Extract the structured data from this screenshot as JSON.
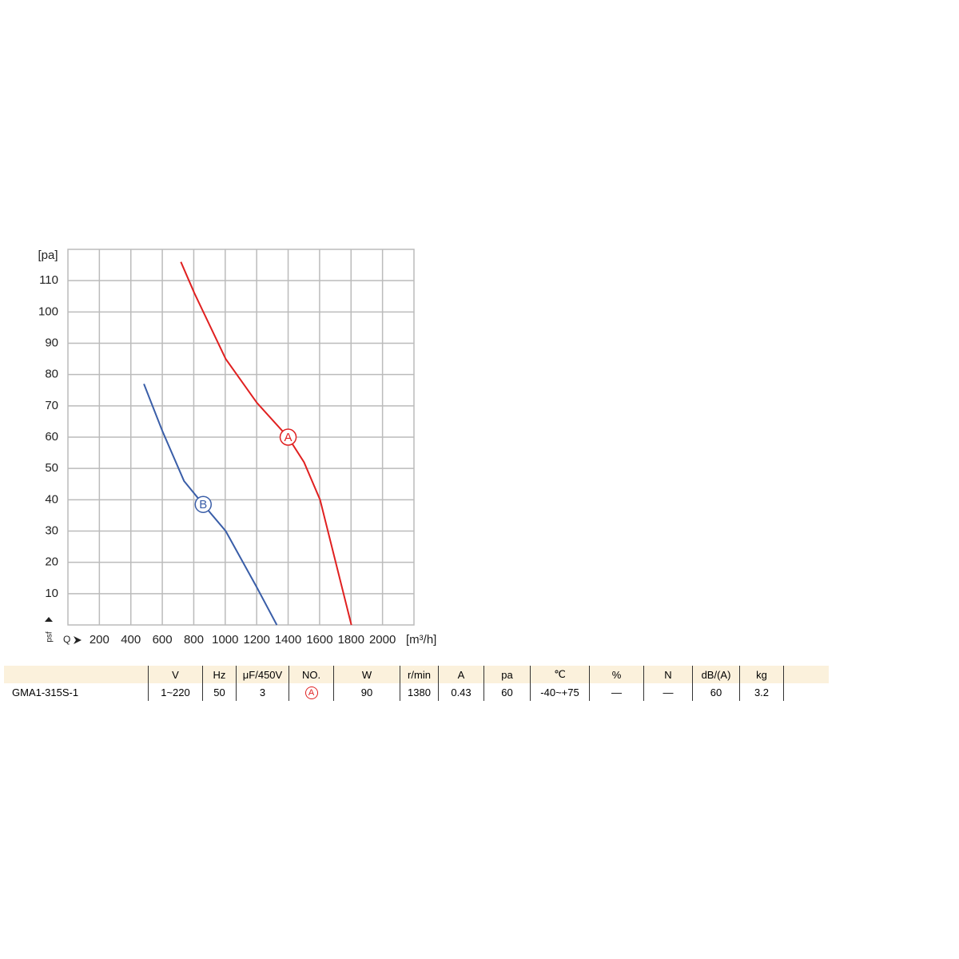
{
  "chart_data": {
    "type": "line",
    "y_label": "[pa]",
    "y_axis_symbol": "psf",
    "x_axis_symbol": "Q",
    "x_label": "[m³/h]",
    "xlim": [
      0,
      2200
    ],
    "xticks": [
      200,
      400,
      600,
      800,
      1000,
      1200,
      1400,
      1600,
      1800,
      2000
    ],
    "ylim": [
      0,
      120
    ],
    "yticks": [
      10,
      20,
      30,
      40,
      50,
      60,
      70,
      80,
      90,
      100,
      110
    ],
    "grid": true,
    "series": [
      {
        "name": "A",
        "color": "#e02020",
        "x": [
          718,
          804,
          1003,
          1201,
          1399,
          1501,
          1603,
          1802
        ],
        "values": [
          116,
          106,
          85,
          71,
          60,
          52,
          40,
          0
        ]
      },
      {
        "name": "B",
        "color": "#3a5ea8",
        "x": [
          483,
          600,
          738,
          860,
          1003,
          1201,
          1328
        ],
        "values": [
          77,
          62,
          46,
          38.5,
          30,
          12,
          0
        ]
      }
    ],
    "annotations": [
      {
        "text": "A",
        "x": 1400,
        "y": 60,
        "color": "#e02020"
      },
      {
        "text": "B",
        "x": 860,
        "y": 38.5,
        "color": "#3a5ea8"
      }
    ]
  },
  "table": {
    "header": [
      "V",
      "Hz",
      "μF/450V",
      "NO.",
      "W",
      "r/min",
      "A",
      "pa",
      "℃",
      "%",
      "N",
      "dB/(A)",
      "kg"
    ],
    "rows": [
      [
        "GMA1-315S-1",
        "1~220",
        "50",
        "3",
        "A",
        "90",
        "1380",
        "0.43",
        "60",
        "-40~+75",
        "—",
        "—",
        "60",
        "3.2"
      ]
    ]
  }
}
